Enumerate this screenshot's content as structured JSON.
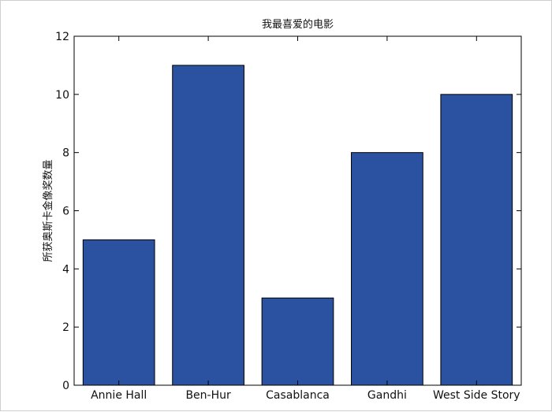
{
  "chart_data": {
    "type": "bar",
    "title": "我最喜爱的电影",
    "xlabel": "",
    "ylabel": "所获奥斯卡金像奖数量",
    "categories": [
      "Annie Hall",
      "Ben-Hur",
      "Casablanca",
      "Gandhi",
      "West Side Story"
    ],
    "values": [
      5,
      11,
      3,
      8,
      10
    ],
    "ylim": [
      0,
      12
    ],
    "yticks": [
      0,
      2,
      4,
      6,
      8,
      10,
      12
    ],
    "bar_color": "#2a52a0",
    "grid": false
  }
}
